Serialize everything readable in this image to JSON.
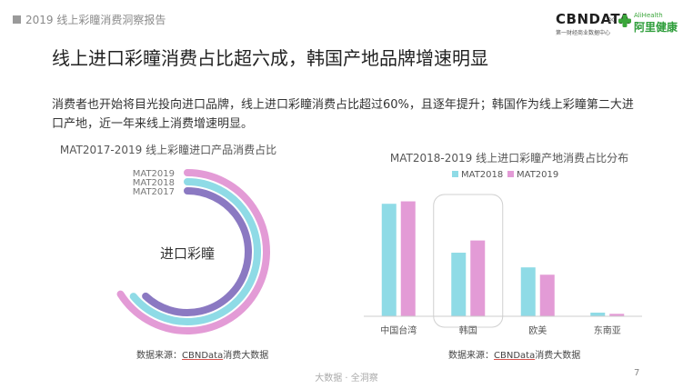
{
  "header": {
    "report_title": "2019 线上彩瞳消费洞察报告"
  },
  "logos": {
    "cbn_name": "CBNDATA",
    "cbn_sub": "第一财经商业数据中心",
    "separator": "×",
    "ali_top": "AliHealth",
    "ali_name": "阿里健康"
  },
  "main_title": "线上进口彩瞳消费占比超六成，韩国产地品牌增速明显",
  "description": "消费者也开始将目光投向进口品牌，线上进口彩瞳消费占比超过60%，且逐年提升；韩国作为线上彩瞳第二大进口产地，近一年来线上消费增速明显。",
  "colors": {
    "mat2019": "#e39bd6",
    "mat2018": "#8fdbe6",
    "mat2017": "#8b79c2",
    "highlight_border": "#d0d0d0"
  },
  "chart_data": [
    {
      "type": "radial-bar",
      "title": "MAT2017-2019 线上彩瞳进口产品消费占比",
      "center_label": "进口彩瞳",
      "series": [
        {
          "name": "MAT2019",
          "value": 0.66,
          "color": "#e39bd6"
        },
        {
          "name": "MAT2018",
          "value": 0.64,
          "color": "#8fdbe6"
        },
        {
          "name": "MAT2017",
          "value": 0.62,
          "color": "#8b79c2"
        }
      ],
      "source_prefix": "数据来源：",
      "source_link": "CBNData",
      "source_suffix": "消费大数据"
    },
    {
      "type": "bar",
      "title": "MAT2018-2019 线上进口彩瞳产地消费占比分布",
      "categories": [
        "中国台湾",
        "韩国",
        "欧美",
        "东南亚"
      ],
      "series": [
        {
          "name": "MAT2018",
          "values": [
            0.46,
            0.26,
            0.2,
            0.015
          ],
          "color": "#8fdbe6"
        },
        {
          "name": "MAT2019",
          "values": [
            0.47,
            0.31,
            0.17,
            0.01
          ],
          "color": "#e39bd6"
        }
      ],
      "highlight_category": "韩国",
      "ylim": [
        0,
        0.55
      ],
      "source_prefix": "数据来源：",
      "source_link": "CBNData",
      "source_suffix": "消费大数据"
    }
  ],
  "footer": {
    "center": "大数据 · 全洞察",
    "page": "7"
  }
}
